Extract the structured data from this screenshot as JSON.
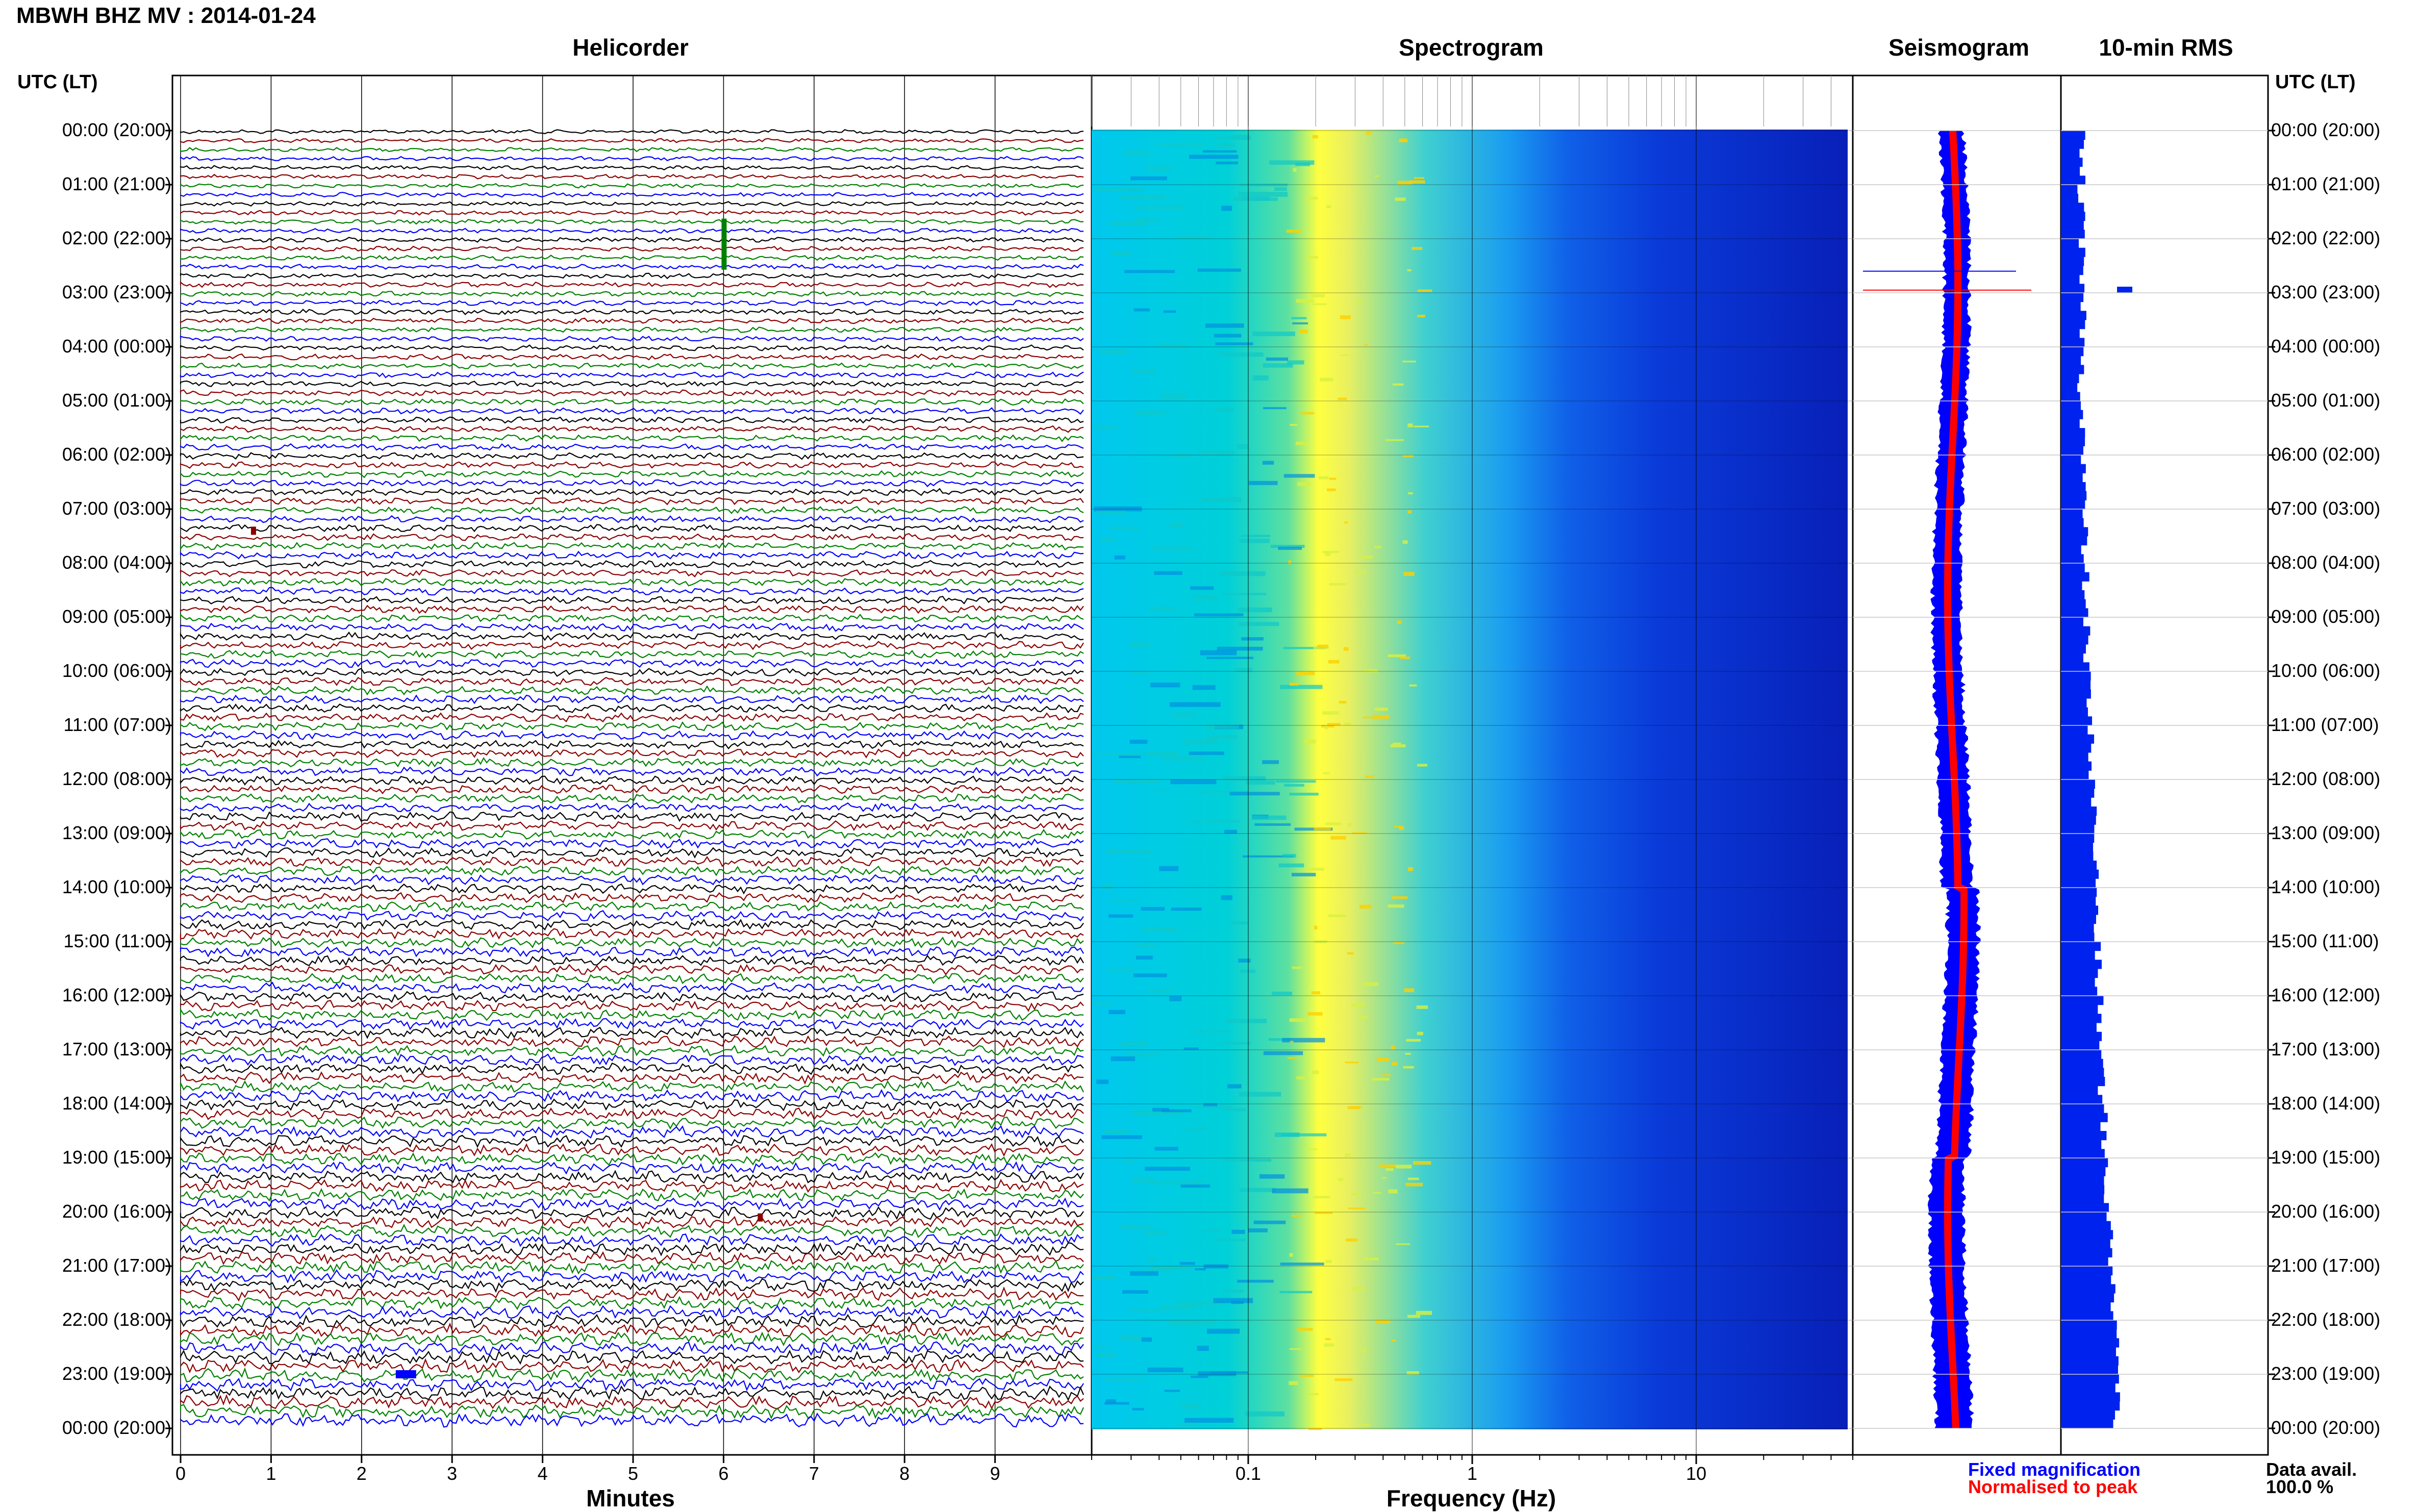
{
  "page": {
    "title": "MBWH BHZ MV : 2014-01-24"
  },
  "panels": {
    "helicorder": "Helicorder",
    "spectrogram": "Spectrogram",
    "seismogram": "Seismogram",
    "rms": "10-min RMS"
  },
  "axis_header_left": "UTC (LT)",
  "axis_header_right": "UTC (LT)",
  "hour_labels": [
    "00:00 (20:00)",
    "01:00 (21:00)",
    "02:00 (22:00)",
    "03:00 (23:00)",
    "04:00 (00:00)",
    "05:00 (01:00)",
    "06:00 (02:00)",
    "07:00 (03:00)",
    "08:00 (04:00)",
    "09:00 (05:00)",
    "10:00 (06:00)",
    "11:00 (07:00)",
    "12:00 (08:00)",
    "13:00 (09:00)",
    "14:00 (10:00)",
    "15:00 (11:00)",
    "16:00 (12:00)",
    "17:00 (13:00)",
    "18:00 (14:00)",
    "19:00 (15:00)",
    "20:00 (16:00)",
    "21:00 (17:00)",
    "22:00 (18:00)",
    "23:00 (19:00)",
    "00:00 (20:00)"
  ],
  "helicorder_xticks": [
    "0",
    "1",
    "2",
    "3",
    "4",
    "5",
    "6",
    "7",
    "8",
    "9"
  ],
  "helicorder_xlabel": "Minutes",
  "spectrogram_xticks": [
    "0.1",
    "1",
    "10"
  ],
  "spectrogram_xlabel": "Frequency (Hz)",
  "legend": {
    "fixed": "Fixed magnification",
    "normalised": "Normalised to peak"
  },
  "data_availability": {
    "label": "Data avail.",
    "value": "100.0 %"
  },
  "colors": {
    "trace_cycle": [
      "#000000",
      "#8b0000",
      "#008000",
      "#0000ff"
    ],
    "fixed_magnification": "#0000ff",
    "normalised_to_peak": "#ff0000",
    "rms_bar": "#0022ee",
    "spectrogram_low": "#00008b",
    "spectrogram_peak": "#ffff00"
  },
  "chart_data": [
    {
      "type": "line",
      "panel": "Helicorder",
      "xlabel": "Minutes",
      "x_ticks": [
        0,
        1,
        2,
        3,
        4,
        5,
        6,
        7,
        8,
        9
      ],
      "xlim": [
        0,
        10
      ],
      "traces_per_hour": 6,
      "trace_count": 144,
      "ylim_hours": [
        0,
        24
      ],
      "events": [
        {
          "hour": 2.1,
          "minute": 6.0,
          "color": "green"
        },
        {
          "hour": 7.4,
          "minute": 0.8,
          "color": "darkred"
        },
        {
          "hour": 20.1,
          "minute": 6.4,
          "color": "darkred"
        },
        {
          "hour": 23.0,
          "minute": 2.4,
          "color": "blue"
        }
      ]
    },
    {
      "type": "heatmap",
      "panel": "Spectrogram",
      "xlabel": "Frequency (Hz)",
      "x_scale": "log",
      "x_ticks": [
        0.1,
        1,
        10
      ],
      "xlim": [
        0.02,
        50
      ],
      "peak_frequency_hz": 0.22,
      "ylim_hours": [
        0,
        24
      ]
    },
    {
      "type": "line",
      "panel": "Seismogram",
      "series": [
        {
          "name": "Fixed magnification",
          "color": "#0000ff"
        },
        {
          "name": "Normalised to peak",
          "color": "#ff0000"
        }
      ],
      "ylim_hours": [
        0,
        24
      ]
    },
    {
      "type": "bar",
      "panel": "10-min RMS",
      "orientation": "horizontal",
      "bin_minutes": 10,
      "hourly_rms_relative": [
        0.6,
        0.6,
        0.6,
        0.62,
        0.6,
        0.62,
        0.62,
        0.63,
        0.64,
        0.65,
        0.67,
        0.7,
        0.72,
        0.74,
        0.75,
        0.76,
        0.78,
        0.8,
        0.82,
        0.85,
        0.88,
        0.92,
        0.96,
        0.95
      ]
    }
  ]
}
